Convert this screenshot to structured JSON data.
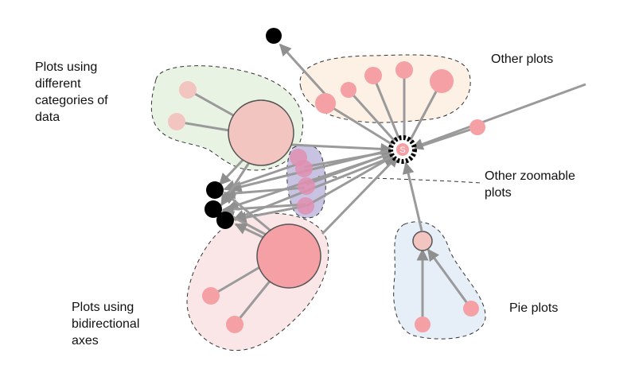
{
  "labels": {
    "other_plots": "Other plots",
    "categories": [
      "Plots using",
      "different",
      "categories of",
      "data"
    ],
    "zoomable": [
      "Other zoomable",
      "plots"
    ],
    "bidirectional": [
      "Plots using",
      "bidirectional",
      "axes"
    ],
    "pie": "Pie plots",
    "hub": "S"
  },
  "colors": {
    "edge": "#9a9a9a",
    "node_pink": "#f4a0a4",
    "node_light_pink": "#f2c5c0",
    "node_black": "#000000",
    "group_green": "#e9f3e4",
    "group_orange": "#fdf0e4",
    "group_purple": "#c9c3e3",
    "group_red": "#fbe6e7",
    "group_blue": "#e6eef8"
  }
}
